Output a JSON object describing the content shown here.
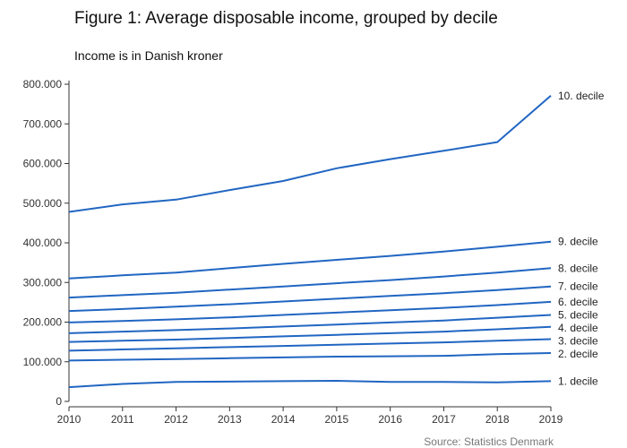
{
  "title": "Figure 1: Average disposable income, grouped by decile",
  "subtitle": "Income is in Danish kroner",
  "source": "Source: Statistics Denmark",
  "colors": {
    "line": "#2166c2",
    "axis": "#333333"
  },
  "chart_data": {
    "type": "line",
    "title": "Figure 1: Average disposable income, grouped by decile",
    "subtitle": "Income is in Danish kroner",
    "xlabel": "",
    "ylabel": "",
    "x": [
      2010,
      2011,
      2012,
      2013,
      2014,
      2015,
      2016,
      2017,
      2018,
      2019
    ],
    "ylim": [
      0,
      800000
    ],
    "yticks": [
      0,
      100000,
      200000,
      300000,
      400000,
      500000,
      600000,
      700000,
      800000
    ],
    "ytick_labels": [
      "0",
      "100.000",
      "200.000",
      "300.000",
      "400.000",
      "500.000",
      "600.000",
      "700.000",
      "800.000"
    ],
    "xtick_labels": [
      "2010",
      "2011",
      "2012",
      "2013",
      "2014",
      "2015",
      "2016",
      "2017",
      "2018",
      "2019"
    ],
    "grid": false,
    "legend": "direct labels at right end of lines",
    "series": [
      {
        "name": "1. decile",
        "values": [
          36000,
          44000,
          49000,
          50000,
          51000,
          52000,
          49000,
          49000,
          48000,
          51000
        ]
      },
      {
        "name": "2. decile",
        "values": [
          103000,
          105000,
          107000,
          109000,
          111000,
          113000,
          114000,
          115000,
          119000,
          122000
        ]
      },
      {
        "name": "3. decile",
        "values": [
          128000,
          131000,
          134000,
          137000,
          140000,
          143000,
          146000,
          149000,
          153000,
          157000
        ]
      },
      {
        "name": "4. decile",
        "values": [
          150000,
          153000,
          156000,
          160000,
          164000,
          168000,
          172000,
          176000,
          182000,
          188000
        ]
      },
      {
        "name": "5. decile",
        "values": [
          172000,
          176000,
          180000,
          184000,
          189000,
          194000,
          199000,
          204000,
          211000,
          218000
        ]
      },
      {
        "name": "6. decile",
        "values": [
          199000,
          203000,
          207000,
          212000,
          218000,
          224000,
          230000,
          236000,
          243000,
          251000
        ]
      },
      {
        "name": "7. decile",
        "values": [
          228000,
          233000,
          239000,
          245000,
          252000,
          259000,
          266000,
          273000,
          281000,
          290000
        ]
      },
      {
        "name": "8. decile",
        "values": [
          262000,
          268000,
          274000,
          282000,
          290000,
          298000,
          306000,
          315000,
          325000,
          336000
        ]
      },
      {
        "name": "9. decile",
        "values": [
          310000,
          318000,
          325000,
          336000,
          347000,
          357000,
          367000,
          378000,
          390000,
          403000
        ]
      },
      {
        "name": "10. decile",
        "values": [
          478000,
          497000,
          509000,
          533000,
          556000,
          588000,
          611000,
          632000,
          654000,
          771000
        ]
      }
    ]
  }
}
